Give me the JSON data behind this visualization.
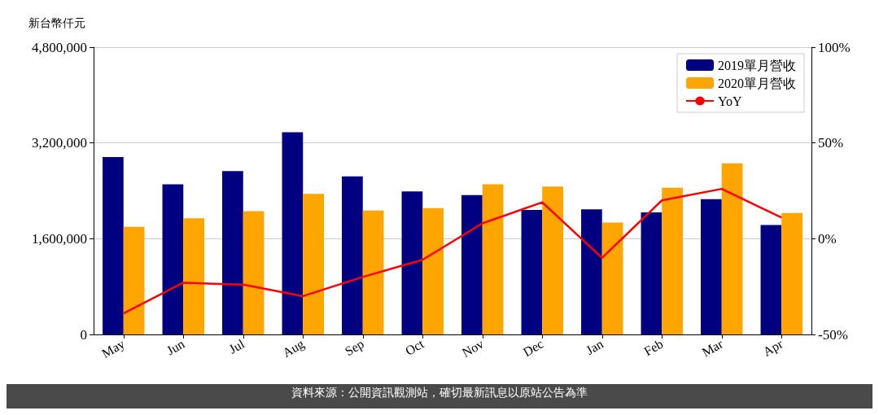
{
  "chart_data": {
    "type": "bar",
    "ylabel": "新台幣仟元",
    "categories": [
      "May",
      "Jun",
      "Jul",
      "Aug",
      "Sep",
      "Oct",
      "Nov",
      "Dec",
      "Jan",
      "Feb",
      "Mar",
      "Apr"
    ],
    "series": [
      {
        "name": "2019單月營收",
        "color": "#000080",
        "values": [
          2965000,
          2510000,
          2730000,
          3380000,
          2640000,
          2390000,
          2330000,
          2080000,
          2090000,
          2040000,
          2260000,
          1830000
        ]
      },
      {
        "name": "2020單月營收",
        "color": "#ffa500",
        "values": [
          1800000,
          1940000,
          2060000,
          2350000,
          2070000,
          2110000,
          2510000,
          2470000,
          1870000,
          2450000,
          2860000,
          2030000
        ]
      },
      {
        "name": "YoY",
        "type": "line",
        "axis": "y2",
        "color": "#ff0000",
        "values": [
          -39,
          -23,
          -24,
          -30,
          -20,
          -11,
          8,
          19,
          -10,
          20,
          26,
          11
        ]
      }
    ],
    "ylim": [
      0,
      4800000
    ],
    "yticks": [
      {
        "value": 0,
        "label": "0"
      },
      {
        "value": 1600000,
        "label": "1,600,000"
      },
      {
        "value": 3200000,
        "label": "3,200,000"
      },
      {
        "value": 4800000,
        "label": "4,800,000"
      }
    ],
    "y2lim": [
      -50,
      100
    ],
    "y2ticks": [
      {
        "value": -50,
        "label": "-50%"
      },
      {
        "value": 0,
        "label": "0%"
      },
      {
        "value": 50,
        "label": "50%"
      },
      {
        "value": 100,
        "label": "100%"
      }
    ],
    "grid": "y",
    "legend": "top right",
    "marker": "none",
    "line_style": "solid",
    "annotations": [
      "資料來源：公開資訊觀測站，確切最新訊息以原站公告為準"
    ]
  }
}
